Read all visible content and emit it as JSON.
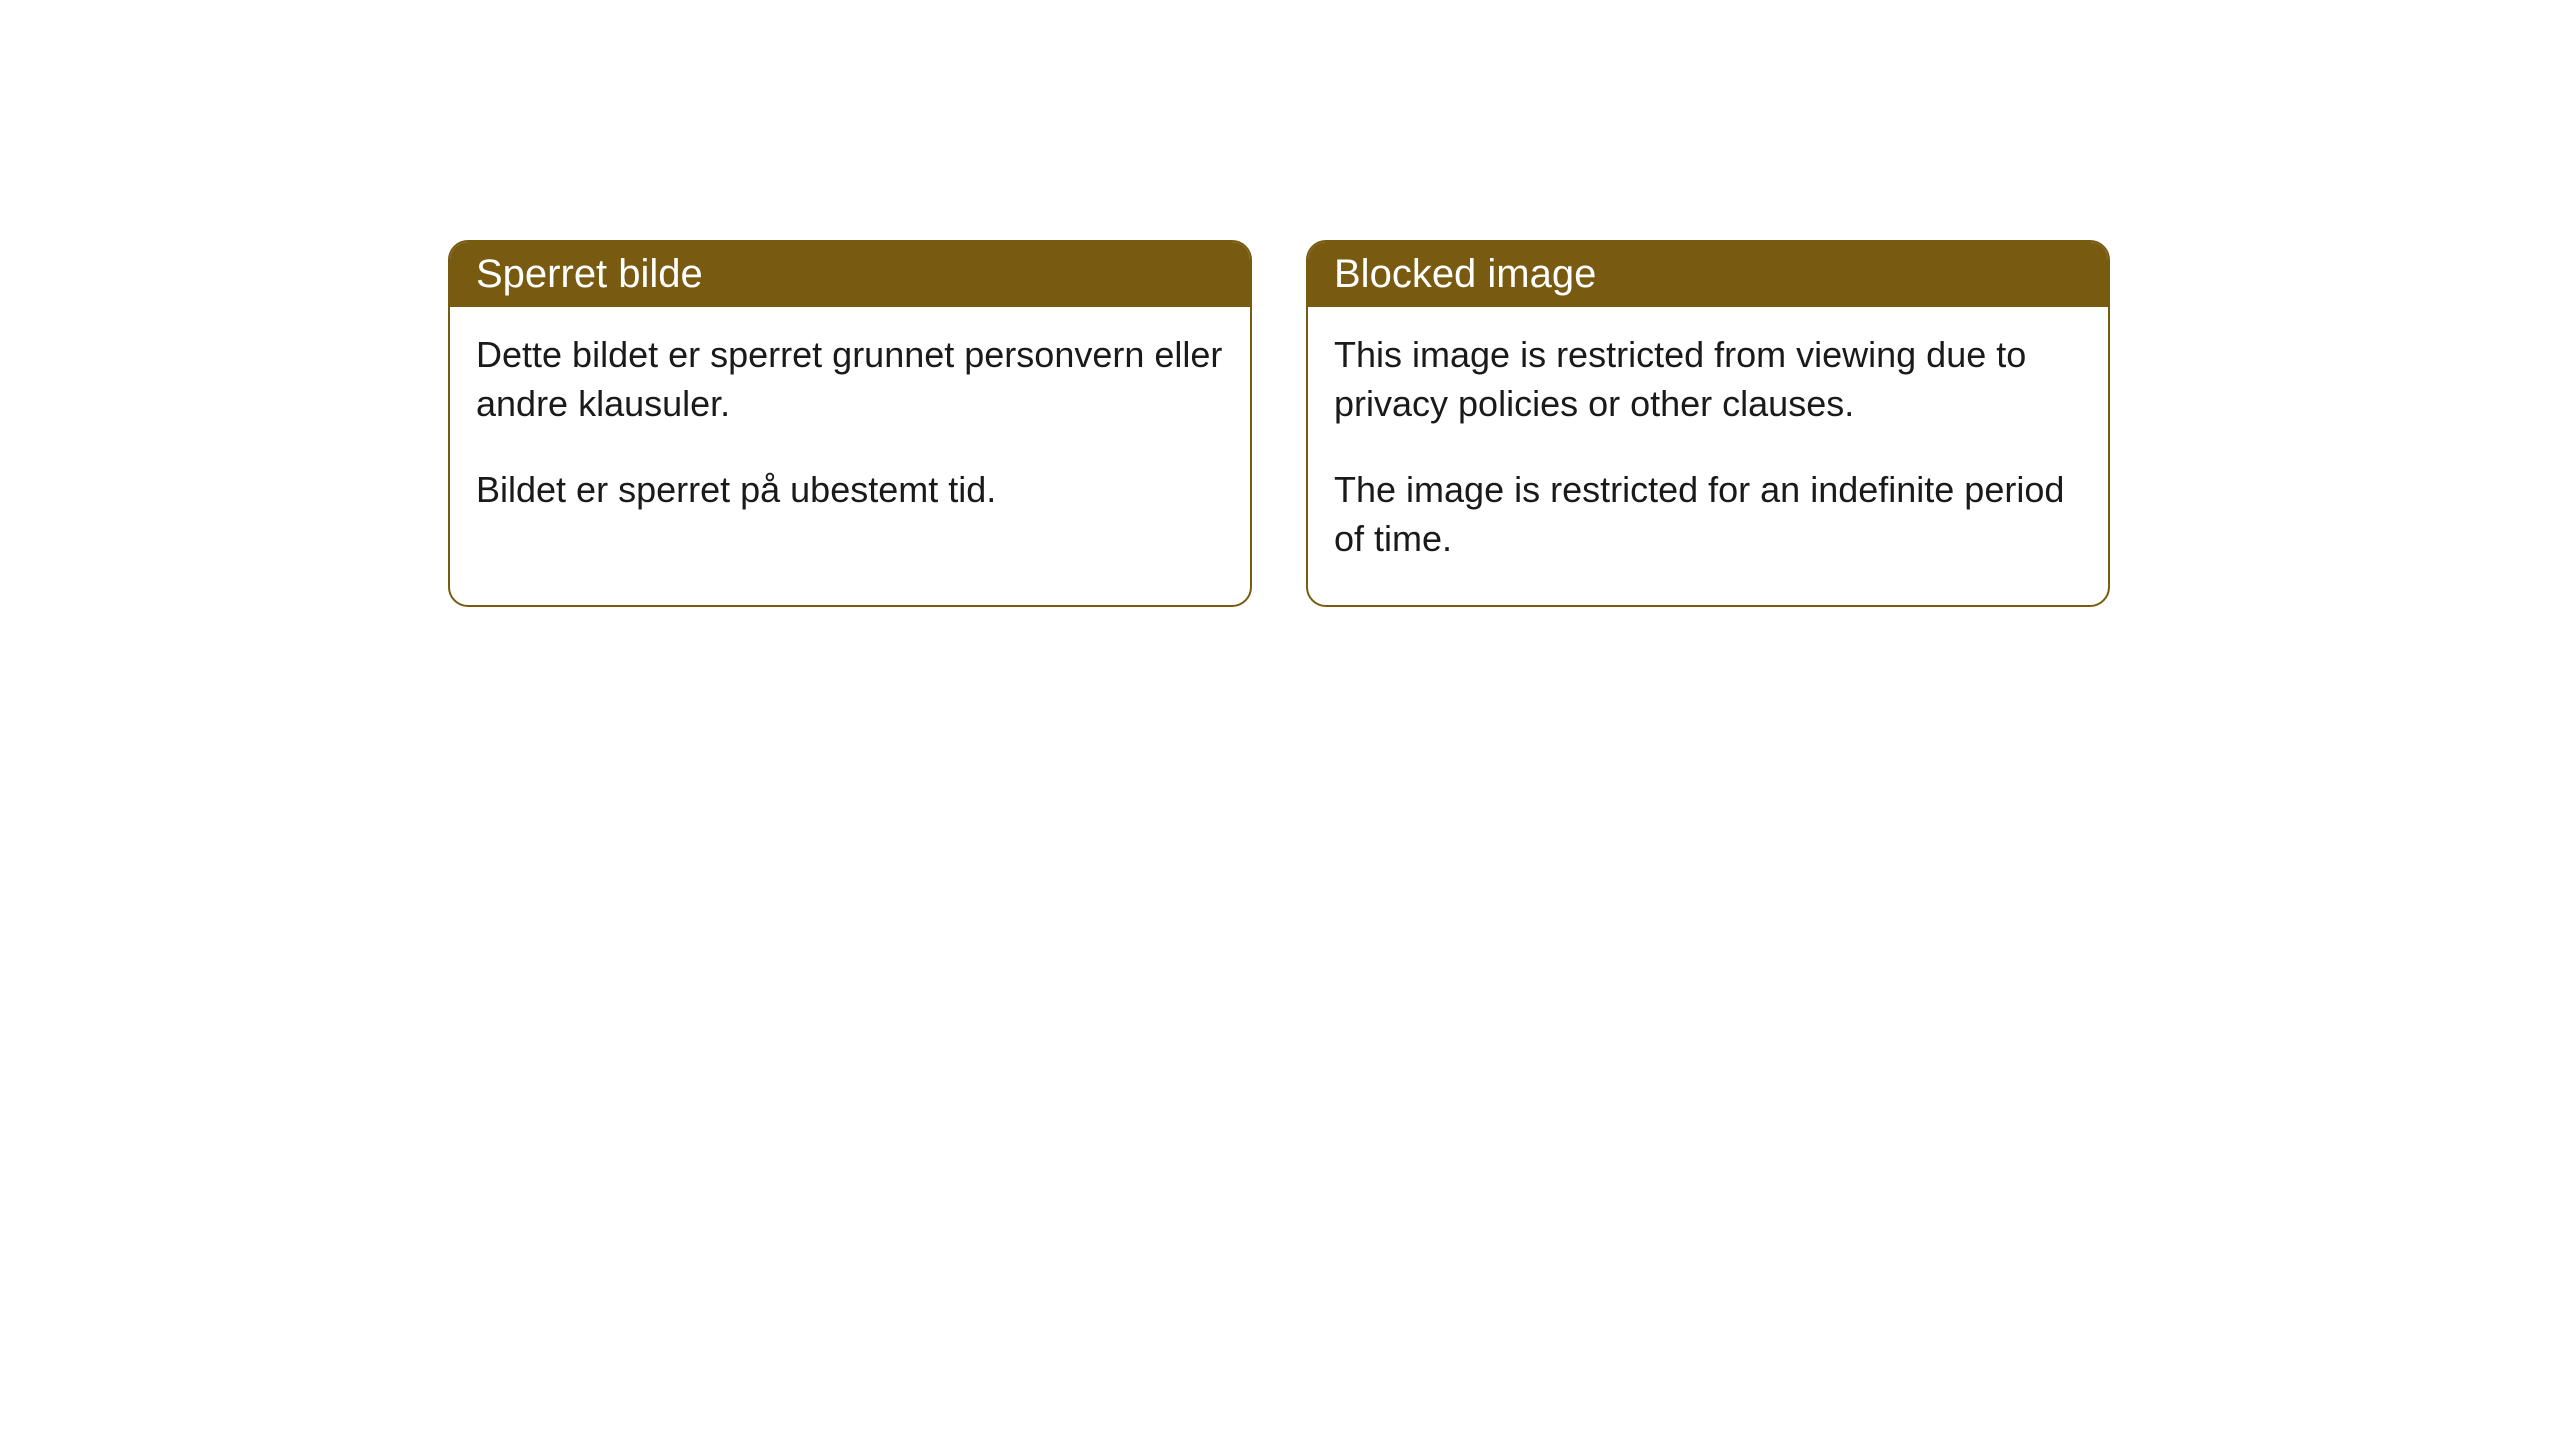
{
  "cards": [
    {
      "header": "Sperret bilde",
      "paragraph1": "Dette bildet er sperret grunnet personvern eller andre klausuler.",
      "paragraph2": "Bildet er sperret på ubestemt tid."
    },
    {
      "header": "Blocked image",
      "paragraph1": "This image is restricted from viewing due to privacy policies or other clauses.",
      "paragraph2": "The image is restricted for an indefinite period of time."
    }
  ],
  "styling": {
    "header_background": "#785a11",
    "header_text_color": "#ffffff",
    "border_color": "#785a11",
    "body_background": "#ffffff",
    "body_text_color": "#1a1a1a",
    "border_radius": 20,
    "header_fontsize": 40,
    "body_fontsize": 36
  }
}
